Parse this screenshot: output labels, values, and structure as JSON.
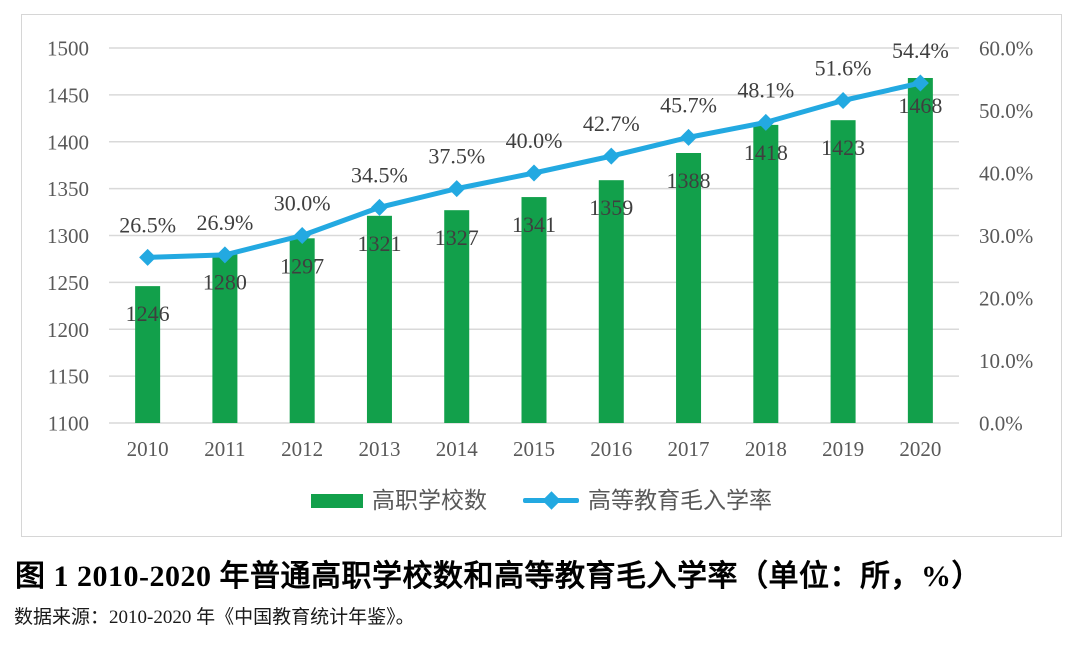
{
  "figure": {
    "title": "图 1 2010-2020 年普通高职学校数和高等教育毛入学率（单位：所，%）",
    "source": "数据来源：2010-2020 年《中国教育统计年鉴》。"
  },
  "chart_data": {
    "type": "bar+line",
    "categories": [
      "2010",
      "2011",
      "2012",
      "2013",
      "2014",
      "2015",
      "2016",
      "2017",
      "2018",
      "2019",
      "2020"
    ],
    "series": [
      {
        "name": "高职学校数",
        "type": "bar",
        "axis": "left",
        "values": [
          1246,
          1280,
          1297,
          1321,
          1327,
          1341,
          1359,
          1388,
          1418,
          1423,
          1468
        ],
        "labels": [
          "1246",
          "1280",
          "1297",
          "1321",
          "1327",
          "1341",
          "1359",
          "1388",
          "1418",
          "1423",
          "1468"
        ]
      },
      {
        "name": "高等教育毛入学率",
        "type": "line",
        "axis": "right",
        "marker": "diamond",
        "values": [
          26.5,
          26.9,
          30.0,
          34.5,
          37.5,
          40.0,
          42.7,
          45.7,
          48.1,
          51.6,
          54.4
        ],
        "labels": [
          "26.5%",
          "26.9%",
          "30.0%",
          "34.5%",
          "37.5%",
          "40.0%",
          "42.7%",
          "45.7%",
          "48.1%",
          "51.6%",
          "54.4%"
        ]
      }
    ],
    "left_axis": {
      "min": 1100,
      "max": 1500,
      "step": 50,
      "ticks": [
        "1500",
        "1450",
        "1400",
        "1350",
        "1300",
        "1250",
        "1200",
        "1150",
        "1100"
      ]
    },
    "right_axis": {
      "min": 0,
      "max": 60,
      "step": 10,
      "ticks": [
        "60.0%",
        "50.0%",
        "40.0%",
        "30.0%",
        "20.0%",
        "10.0%",
        "0.0%"
      ]
    },
    "grid": true,
    "legend_position": "bottom"
  },
  "legend": {
    "items": [
      {
        "label": "高职学校数",
        "swatch": "bar"
      },
      {
        "label": "高等教育毛入学率",
        "swatch": "line-diamond"
      }
    ]
  },
  "colors": {
    "bar": "#12a04b",
    "line": "#23a9e1",
    "grid": "#d9d9d9",
    "axis_text": "#595959",
    "data_label": "#3f3f3f",
    "border": "#d6d6d6"
  }
}
